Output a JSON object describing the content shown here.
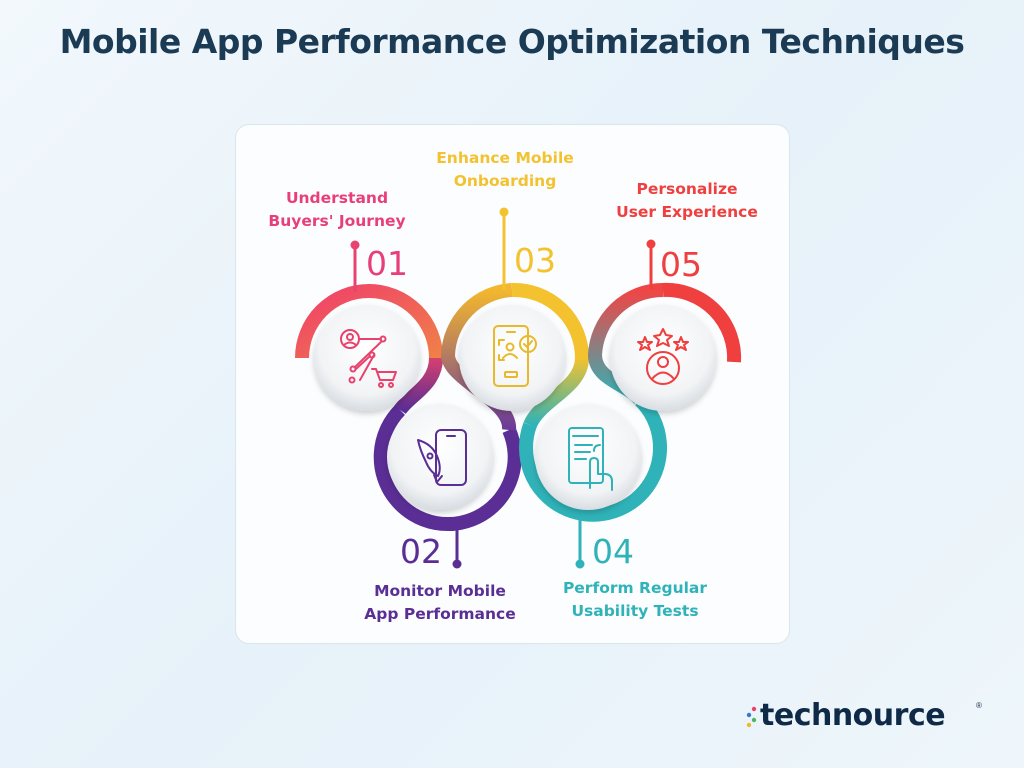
{
  "title": "Mobile App Performance Optimization Techniques",
  "steps": [
    {
      "number": "01",
      "label_line1": "Understand",
      "label_line2": "Buyers' Journey",
      "color": "#e83f78",
      "icon": "customer-journey-icon"
    },
    {
      "number": "02",
      "label_line1": "Monitor Mobile",
      "label_line2": "App Performance",
      "color": "#5a2e95",
      "icon": "rocket-phone-icon"
    },
    {
      "number": "03",
      "label_line1": "Enhance Mobile",
      "label_line2": "Onboarding",
      "color": "#f3c22e",
      "icon": "phone-profile-check-icon"
    },
    {
      "number": "04",
      "label_line1": "Perform Regular",
      "label_line2": "Usability Tests",
      "color": "#2fb3b8",
      "icon": "touch-screen-icon"
    },
    {
      "number": "05",
      "label_line1": "Personalize",
      "label_line2": "User Experience",
      "color": "#ee3d3d",
      "icon": "user-stars-icon"
    }
  ],
  "logo": {
    "text": "technource",
    "registered": "®"
  }
}
